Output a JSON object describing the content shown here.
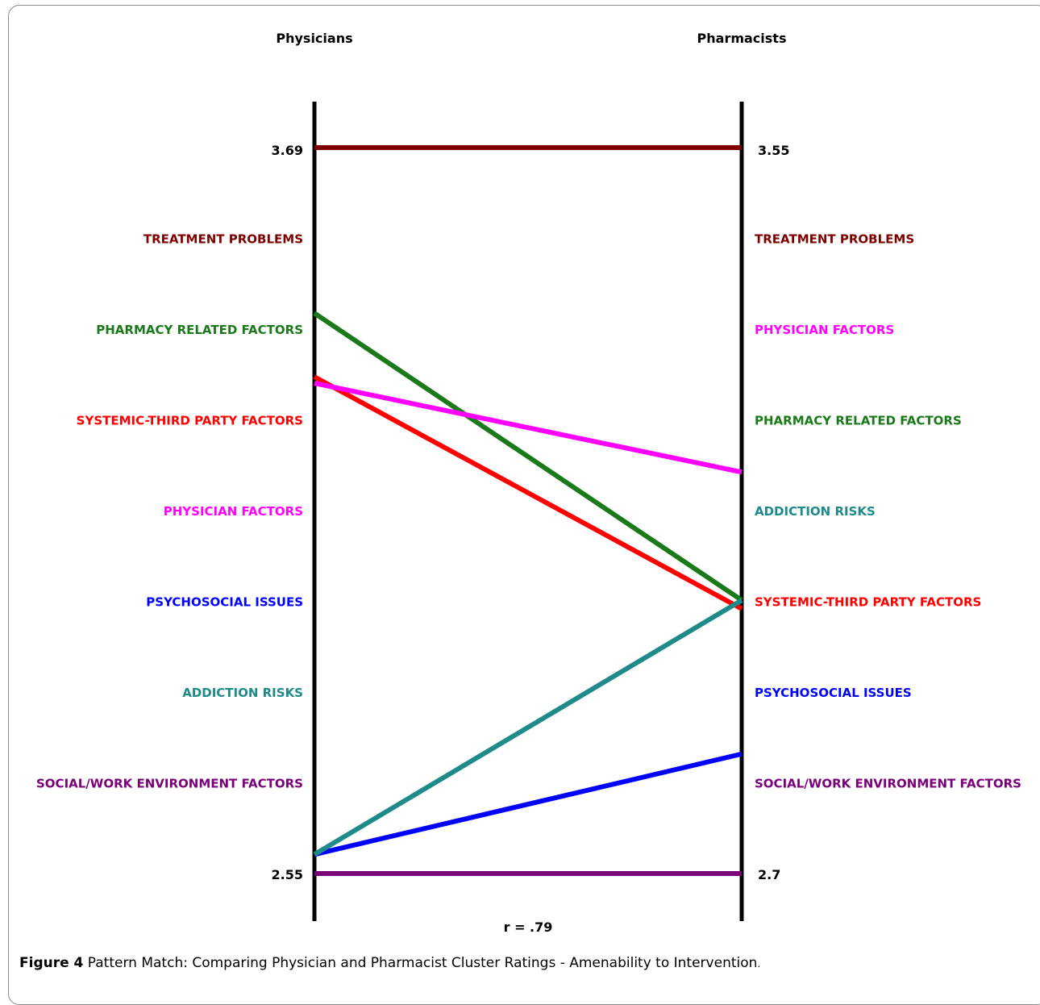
{
  "chart_data": {
    "type": "line",
    "left_axis_label": "Physicians",
    "right_axis_label": "Pharmacists",
    "left_range": [
      2.55,
      3.69
    ],
    "right_range": [
      2.7,
      3.55
    ],
    "left_labels": [
      "TREATMENT PROBLEMS",
      "PHARMACY RELATED FACTORS",
      "SYSTEMIC-THIRD PARTY FACTORS",
      "PHYSICIAN FACTORS",
      "PSYCHOSOCIAL ISSUES",
      "ADDICTION RISKS",
      "SOCIAL/WORK ENVIRONMENT FACTORS"
    ],
    "right_labels": [
      "TREATMENT PROBLEMS",
      "PHYSICIAN FACTORS",
      "PHARMACY RELATED FACTORS",
      "ADDICTION RISKS",
      "SYSTEMIC-THIRD PARTY FACTORS",
      "PSYCHOSOCIAL ISSUES",
      "SOCIAL/WORK ENVIRONMENT FACTORS"
    ],
    "series": [
      {
        "name": "TREATMENT PROBLEMS",
        "color": "#7f0000",
        "physicians": 3.69,
        "pharmacists": 3.55
      },
      {
        "name": "PHARMACY RELATED FACTORS",
        "color": "#1a7a1a",
        "physicians": 3.43,
        "pharmacists": 3.02
      },
      {
        "name": "SYSTEMIC-THIRD PARTY FACTORS",
        "color": "#ff0000",
        "physicians": 3.33,
        "pharmacists": 3.01
      },
      {
        "name": "PHYSICIAN FACTORS",
        "color": "#ff00ff",
        "physicians": 3.32,
        "pharmacists": 3.17
      },
      {
        "name": "PSYCHOSOCIAL ISSUES",
        "color": "#0000ff",
        "physicians": 2.58,
        "pharmacists": 2.84
      },
      {
        "name": "ADDICTION RISKS",
        "color": "#1f8a8a",
        "physicians": 2.58,
        "pharmacists": 3.02
      },
      {
        "name": "SOCIAL/WORK ENVIRONMENT FACTORS",
        "color": "#7a007a",
        "physicians": 2.55,
        "pharmacists": 2.7
      }
    ],
    "correlation_label": "r = .79"
  },
  "caption": {
    "lead": "Figure 4",
    "text": " Pattern Match: Comparing Physician and Pharmacist Cluster Ratings - Amenability to Intervention",
    "end": "."
  }
}
